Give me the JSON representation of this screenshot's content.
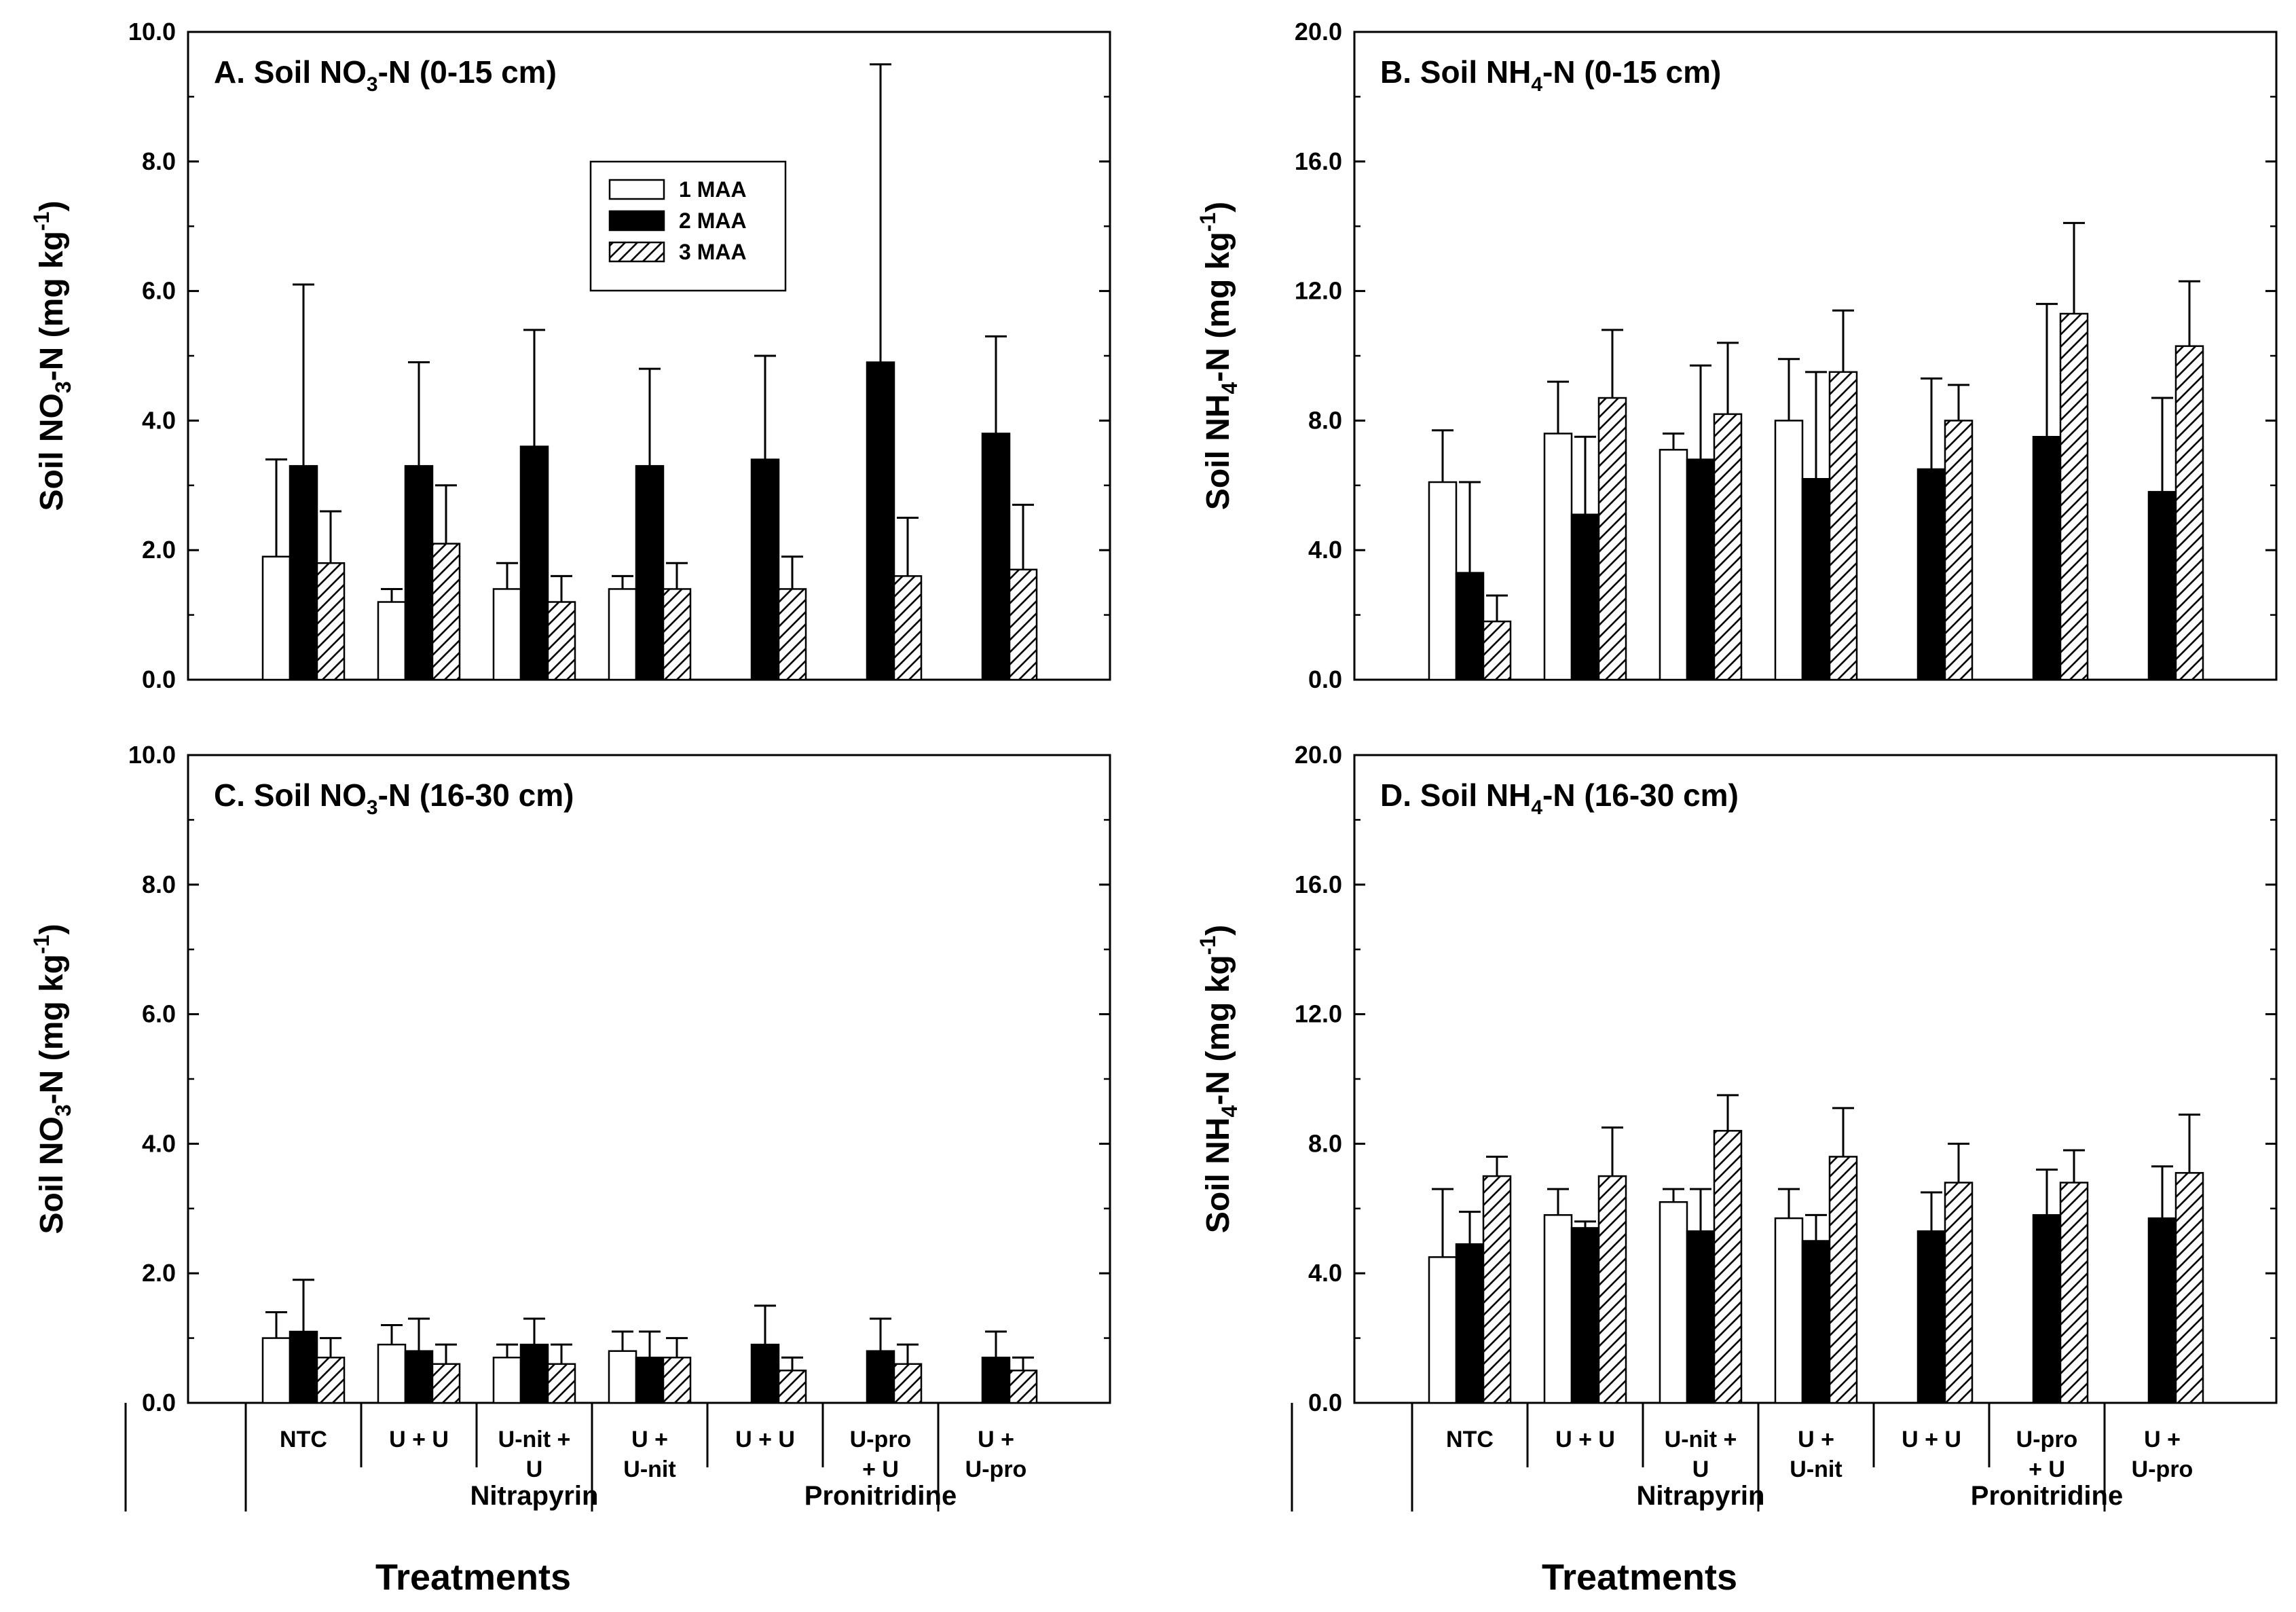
{
  "figure": {
    "series": [
      "1 MAA",
      "2 MAA",
      "3 MAA"
    ],
    "x_title": "Treatments",
    "groups": [
      "Nitrapyrin",
      "Pronitridine"
    ]
  },
  "legend": {
    "items": [
      "1 MAA",
      "2 MAA",
      "3 MAA"
    ]
  },
  "chart_data": [
    {
      "id": "A",
      "type": "bar",
      "title_prefix": "A. Soil NO",
      "title_sub": "3",
      "title_suffix": "-N (0-15 cm)",
      "ylabel_prefix": "Soil NO",
      "ylabel_sub": "3",
      "ylabel_mid": "-N (mg kg",
      "ylabel_sup": "-1",
      "ylabel_end": ")",
      "ylim": [
        0,
        10
      ],
      "yticks": [
        "0.0",
        "2.0",
        "4.0",
        "6.0",
        "8.0",
        "10.0"
      ],
      "categories": [
        "NTC",
        "U + U",
        "U-nit + U",
        "U + U-nit",
        "U + U",
        "U-pro + U",
        "U + U-pro"
      ],
      "series": [
        {
          "name": "1 MAA",
          "values": [
            1.9,
            1.2,
            1.4,
            1.4,
            null,
            null,
            null
          ],
          "errors": [
            1.5,
            0.2,
            0.4,
            0.2,
            null,
            null,
            null
          ]
        },
        {
          "name": "2 MAA",
          "values": [
            3.3,
            3.3,
            3.6,
            3.3,
            3.4,
            4.9,
            3.8
          ],
          "errors": [
            2.8,
            1.6,
            1.8,
            1.5,
            1.6,
            4.6,
            1.5
          ]
        },
        {
          "name": "3 MAA",
          "values": [
            1.8,
            2.1,
            1.2,
            1.4,
            1.4,
            1.6,
            1.7
          ],
          "errors": [
            0.8,
            0.9,
            0.4,
            0.4,
            0.5,
            0.9,
            1.0
          ]
        }
      ]
    },
    {
      "id": "B",
      "type": "bar",
      "title_prefix": "B. Soil NH",
      "title_sub": "4",
      "title_suffix": "-N (0-15 cm)",
      "ylabel_prefix": "Soil NH",
      "ylabel_sub": "4",
      "ylabel_mid": "-N (mg kg",
      "ylabel_sup": "-1",
      "ylabel_end": ")",
      "ylim": [
        0,
        20
      ],
      "yticks": [
        "0.0",
        "4.0",
        "8.0",
        "12.0",
        "16.0",
        "20.0"
      ],
      "categories": [
        "NTC",
        "U + U",
        "U-nit + U",
        "U + U-nit",
        "U + U",
        "U-pro + U",
        "U + U-pro"
      ],
      "series": [
        {
          "name": "1 MAA",
          "values": [
            6.1,
            7.6,
            7.1,
            8.0,
            null,
            null,
            null
          ],
          "errors": [
            1.6,
            1.6,
            0.5,
            1.9,
            null,
            null,
            null
          ]
        },
        {
          "name": "2 MAA",
          "values": [
            3.3,
            5.1,
            6.8,
            6.2,
            6.5,
            7.5,
            5.8
          ],
          "errors": [
            2.8,
            2.4,
            2.9,
            3.3,
            2.8,
            4.1,
            2.9
          ]
        },
        {
          "name": "3 MAA",
          "values": [
            1.8,
            8.7,
            8.2,
            9.5,
            8.0,
            11.3,
            10.3
          ],
          "errors": [
            0.8,
            2.1,
            2.2,
            1.9,
            1.1,
            2.8,
            2.0
          ]
        }
      ]
    },
    {
      "id": "C",
      "type": "bar",
      "title_prefix": "C. Soil NO",
      "title_sub": "3",
      "title_suffix": "-N (16-30 cm)",
      "ylabel_prefix": "Soil NO",
      "ylabel_sub": "3",
      "ylabel_mid": "-N (mg kg",
      "ylabel_sup": "-1",
      "ylabel_end": ")",
      "ylim": [
        0,
        10
      ],
      "yticks": [
        "0.0",
        "2.0",
        "4.0",
        "6.0",
        "8.0",
        "10.0"
      ],
      "categories": [
        "NTC",
        "U + U",
        "U-nit + U",
        "U + U-nit",
        "U + U",
        "U-pro + U",
        "U + U-pro"
      ],
      "series": [
        {
          "name": "1 MAA",
          "values": [
            1.0,
            0.9,
            0.7,
            0.8,
            null,
            null,
            null
          ],
          "errors": [
            0.4,
            0.3,
            0.2,
            0.3,
            null,
            null,
            null
          ]
        },
        {
          "name": "2 MAA",
          "values": [
            1.1,
            0.8,
            0.9,
            0.7,
            0.9,
            0.8,
            0.7
          ],
          "errors": [
            0.8,
            0.5,
            0.4,
            0.4,
            0.6,
            0.5,
            0.4
          ]
        },
        {
          "name": "3 MAA",
          "values": [
            0.7,
            0.6,
            0.6,
            0.7,
            0.5,
            0.6,
            0.5
          ],
          "errors": [
            0.3,
            0.3,
            0.3,
            0.3,
            0.2,
            0.3,
            0.2
          ]
        }
      ]
    },
    {
      "id": "D",
      "type": "bar",
      "title_prefix": "D. Soil NH",
      "title_sub": "4",
      "title_suffix": "-N (16-30 cm)",
      "ylabel_prefix": "Soil NH",
      "ylabel_sub": "4",
      "ylabel_mid": "-N (mg kg",
      "ylabel_sup": "-1",
      "ylabel_end": ")",
      "ylim": [
        0,
        20
      ],
      "yticks": [
        "0.0",
        "4.0",
        "8.0",
        "12.0",
        "16.0",
        "20.0"
      ],
      "categories": [
        "NTC",
        "U + U",
        "U-nit + U",
        "U + U-nit",
        "U + U",
        "U-pro + U",
        "U + U-pro"
      ],
      "series": [
        {
          "name": "1 MAA",
          "values": [
            4.5,
            5.8,
            6.2,
            5.7,
            null,
            null,
            null
          ],
          "errors": [
            2.1,
            0.8,
            0.4,
            0.9,
            null,
            null,
            null
          ]
        },
        {
          "name": "2 MAA",
          "values": [
            4.9,
            5.4,
            5.3,
            5.0,
            5.3,
            5.8,
            5.7
          ],
          "errors": [
            1.0,
            0.2,
            1.3,
            0.8,
            1.2,
            1.4,
            1.6
          ]
        },
        {
          "name": "3 MAA",
          "values": [
            7.0,
            7.0,
            8.4,
            7.6,
            6.8,
            6.8,
            7.1
          ],
          "errors": [
            0.6,
            1.5,
            1.1,
            1.5,
            1.2,
            1.0,
            1.8
          ]
        }
      ]
    }
  ]
}
